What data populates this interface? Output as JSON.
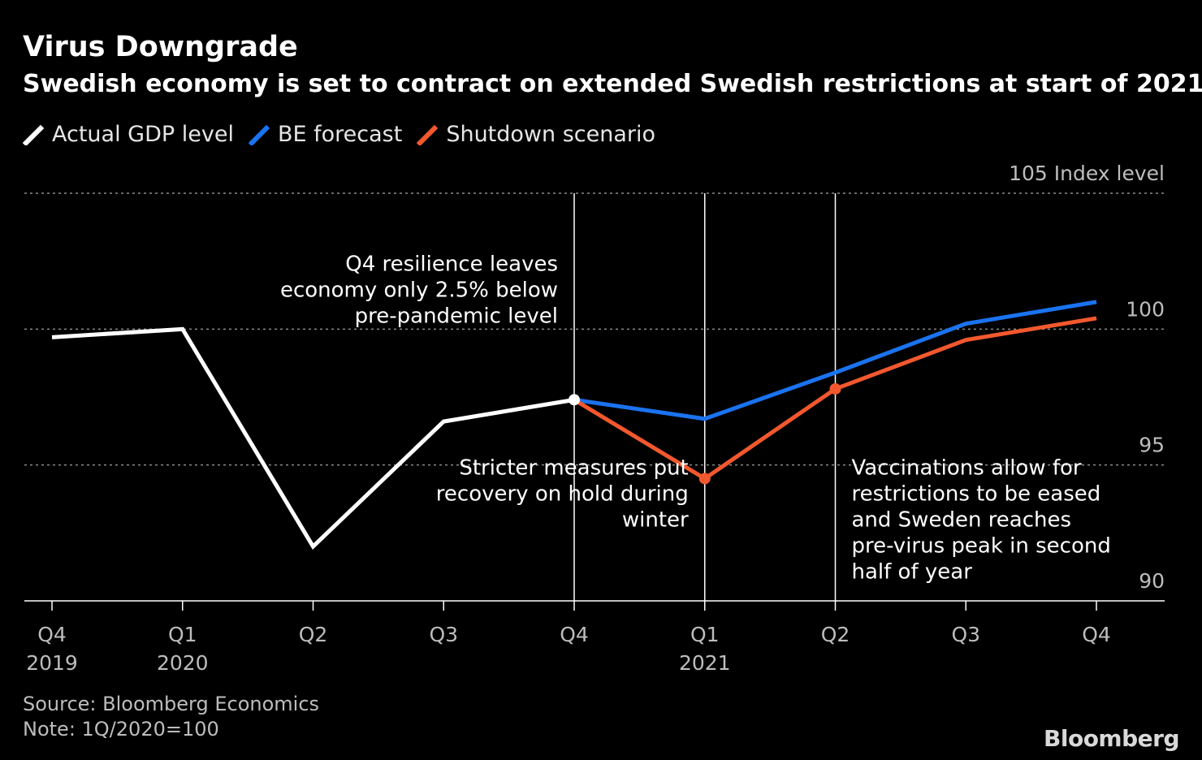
{
  "title": "Virus Downgrade",
  "subtitle": "Swedish economy is set to contract on extended Swedish restrictions at start of 2021",
  "legend": [
    {
      "label": "Actual GDP level",
      "color": "#ffffff"
    },
    {
      "label": "BE forecast",
      "color": "#1a73f0"
    },
    {
      "label": "Shutdown scenario",
      "color": "#f2582d"
    }
  ],
  "footer": {
    "source": "Source: Bloomberg Economics",
    "note": "Note: 1Q/2020=100",
    "brand": "Bloomberg"
  },
  "chart_data": {
    "type": "line",
    "ylabel": "Index level",
    "ylim": [
      90,
      105
    ],
    "yticks": [
      90,
      95,
      100,
      105
    ],
    "ytick_labels": [
      "90",
      "95",
      "100",
      "105"
    ],
    "x_ticks": [
      {
        "quarter": "Q4",
        "year": "2019"
      },
      {
        "quarter": "Q1",
        "year": "2020"
      },
      {
        "quarter": "Q2",
        "year": ""
      },
      {
        "quarter": "Q3",
        "year": ""
      },
      {
        "quarter": "Q4",
        "year": ""
      },
      {
        "quarter": "Q1",
        "year": "2021"
      },
      {
        "quarter": "Q2",
        "year": ""
      },
      {
        "quarter": "Q3",
        "year": ""
      },
      {
        "quarter": "Q4",
        "year": ""
      }
    ],
    "series": [
      {
        "name": "Actual GDP level",
        "color": "#ffffff",
        "values": [
          99.7,
          100.0,
          92.0,
          96.6,
          97.4,
          null,
          null,
          null,
          null
        ],
        "marker_at": [
          4
        ]
      },
      {
        "name": "BE forecast",
        "color": "#1a73f0",
        "values": [
          null,
          null,
          null,
          null,
          97.4,
          96.7,
          98.4,
          100.2,
          101.0
        ],
        "marker_at": []
      },
      {
        "name": "Shutdown scenario",
        "color": "#f2582d",
        "values": [
          null,
          null,
          null,
          null,
          97.4,
          94.5,
          97.8,
          99.6,
          100.4
        ],
        "marker_at": [
          5,
          6
        ]
      }
    ],
    "vertical_lines_at": [
      4,
      5,
      6
    ],
    "annotations": [
      {
        "anchor_index": 4,
        "align": "end",
        "value": 102.5,
        "lines": [
          "Q4 resilience leaves",
          "economy only 2.5% below",
          "pre-pandemic level"
        ]
      },
      {
        "anchor_index": 5,
        "align": "end",
        "value": 95.0,
        "lines": [
          "Stricter measures put",
          "recovery on hold during",
          "winter"
        ]
      },
      {
        "anchor_index": 6,
        "align": "start",
        "value": 95.0,
        "lines": [
          "Vaccinations allow for",
          "restrictions to be eased",
          "and Sweden reaches",
          "pre-virus peak in second",
          "half of year"
        ]
      }
    ]
  }
}
